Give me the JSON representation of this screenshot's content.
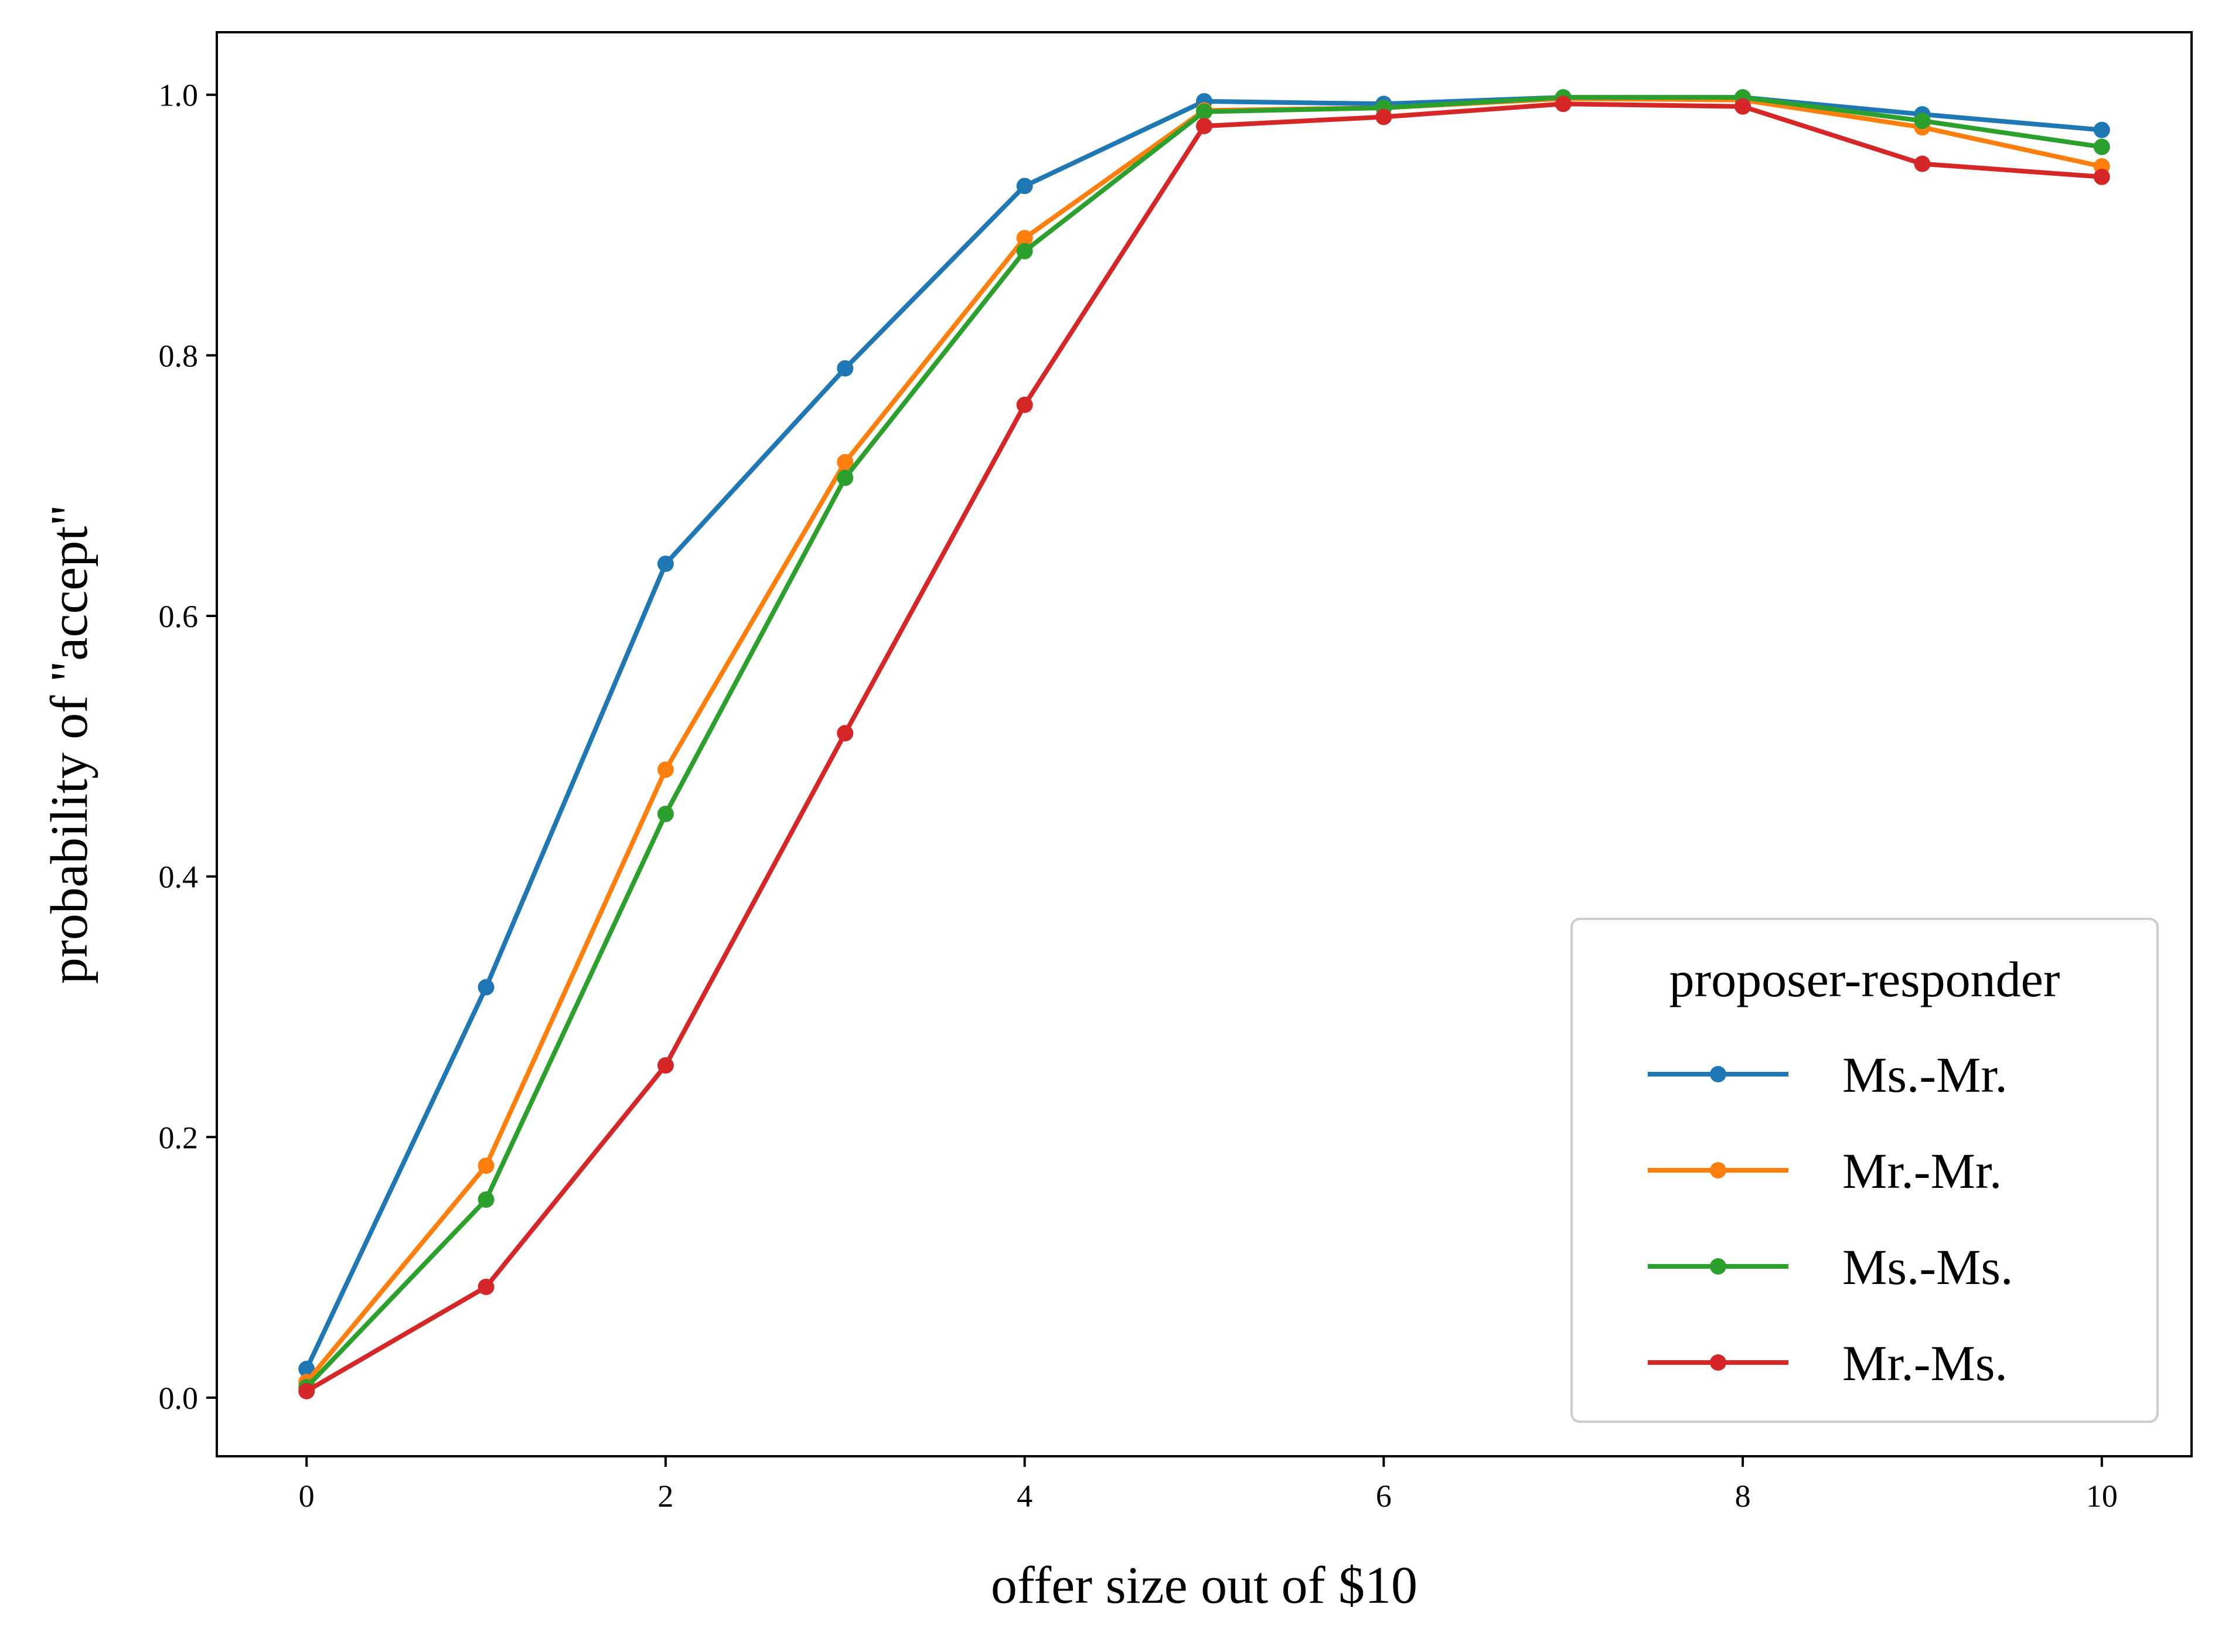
{
  "chart_data": {
    "type": "line",
    "title": "",
    "xlabel": "offer size out of $10",
    "ylabel": "probability of \"accept\"",
    "x": [
      0,
      1,
      2,
      3,
      4,
      5,
      6,
      7,
      8,
      9,
      10
    ],
    "xlim": [
      -0.5,
      10.5
    ],
    "ylim": [
      -0.045,
      1.048
    ],
    "xticks": [
      0,
      2,
      4,
      6,
      8,
      10
    ],
    "xtick_labels": [
      "0",
      "2",
      "4",
      "6",
      "8",
      "10"
    ],
    "yticks": [
      0.0,
      0.2,
      0.4,
      0.6,
      0.8,
      1.0
    ],
    "ytick_labels": [
      "0.0",
      "0.2",
      "0.4",
      "0.6",
      "0.8",
      "1.0"
    ],
    "grid": false,
    "legend": {
      "title": "proposer-responder",
      "placement": "lower-right"
    },
    "series": [
      {
        "name": "Ms.-Mr.",
        "color": "#1f77b4",
        "values": [
          0.022,
          0.315,
          0.64,
          0.79,
          0.93,
          0.995,
          0.993,
          0.998,
          0.998,
          0.985,
          0.973
        ]
      },
      {
        "name": "Mr.-Mr.",
        "color": "#ff7f0e",
        "values": [
          0.012,
          0.178,
          0.482,
          0.718,
          0.89,
          0.988,
          0.99,
          0.997,
          0.996,
          0.975,
          0.945
        ]
      },
      {
        "name": "Ms.-Ms.",
        "color": "#2ca02c",
        "values": [
          0.008,
          0.152,
          0.448,
          0.706,
          0.88,
          0.987,
          0.99,
          0.998,
          0.998,
          0.98,
          0.96
        ]
      },
      {
        "name": "Mr.-Ms.",
        "color": "#d62728",
        "values": [
          0.005,
          0.085,
          0.255,
          0.51,
          0.762,
          0.976,
          0.983,
          0.993,
          0.991,
          0.947,
          0.937
        ]
      }
    ]
  }
}
